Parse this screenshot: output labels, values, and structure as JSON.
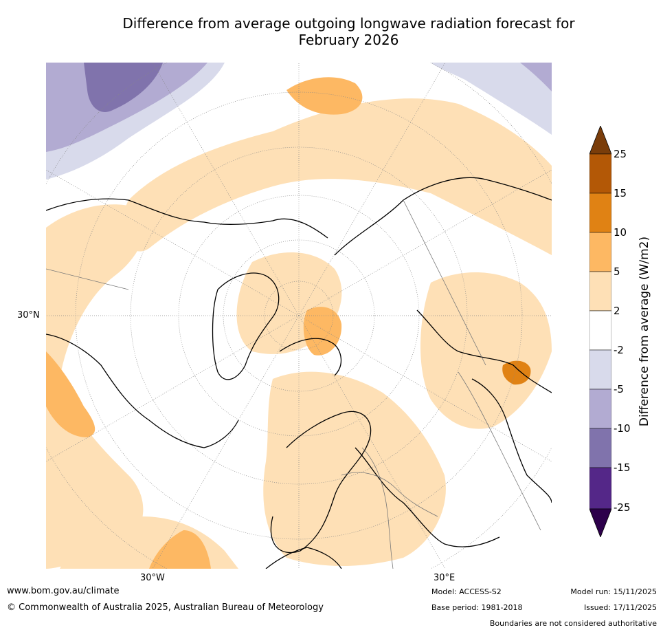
{
  "title_line1": "Difference from average outgoing longwave radiation forecast for",
  "title_line2": "February 2026",
  "map": {
    "lat_label": "30°N",
    "lon_labels": [
      "30°W",
      "30°E"
    ]
  },
  "colorbar": {
    "title": "Difference from average (W/m2)",
    "ticks": [
      "25",
      "15",
      "10",
      "5",
      "2",
      "-2",
      "-5",
      "-10",
      "-15",
      "-25"
    ],
    "colors": {
      "above_25": "#7a3d0a",
      "15_25": "#b35806",
      "10_15": "#e08214",
      "5_10": "#fdb863",
      "2_5": "#fee0b6",
      "neutral": "#ffffff",
      "m5_m2": "#d8daeb",
      "m10_m5": "#b2abd2",
      "m15_m10": "#8073ac",
      "m25_m15": "#542788",
      "below_m25": "#2d004b"
    }
  },
  "footer": {
    "website": "www.bom.gov.au/climate",
    "copyright": "© Commonwealth of Australia 2025, Australian Bureau of Meteorology",
    "model": "Model: ACCESS-S2",
    "base_period": "Base period: 1981-2018",
    "model_run": "Model run: 15/11/2025",
    "issued": "Issued: 17/11/2025",
    "disclaimer": "Boundaries are not considered authoritative"
  }
}
